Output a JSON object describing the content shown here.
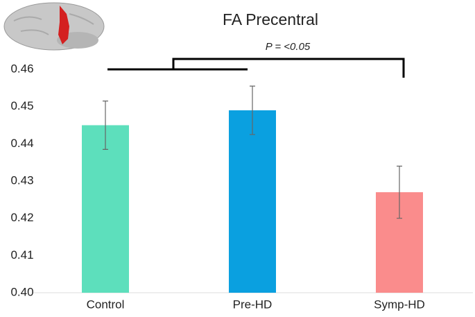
{
  "chart_data": {
    "type": "bar",
    "title": "FA Precentral",
    "categories": [
      "Control",
      "Pre-HD",
      "Symp-HD"
    ],
    "values": [
      0.445,
      0.449,
      0.427
    ],
    "errors": [
      0.0065,
      0.0065,
      0.007
    ],
    "colors": [
      "#5ddfbc",
      "#0aa0e0",
      "#fa8c8c"
    ],
    "ylim": [
      0.4,
      0.46
    ],
    "yticks": [
      {
        "value": 0.4,
        "label": "0.40"
      },
      0.41,
      0.42,
      0.43,
      0.44,
      0.45,
      0.46
    ],
    "annotation": "P = <0.05"
  }
}
